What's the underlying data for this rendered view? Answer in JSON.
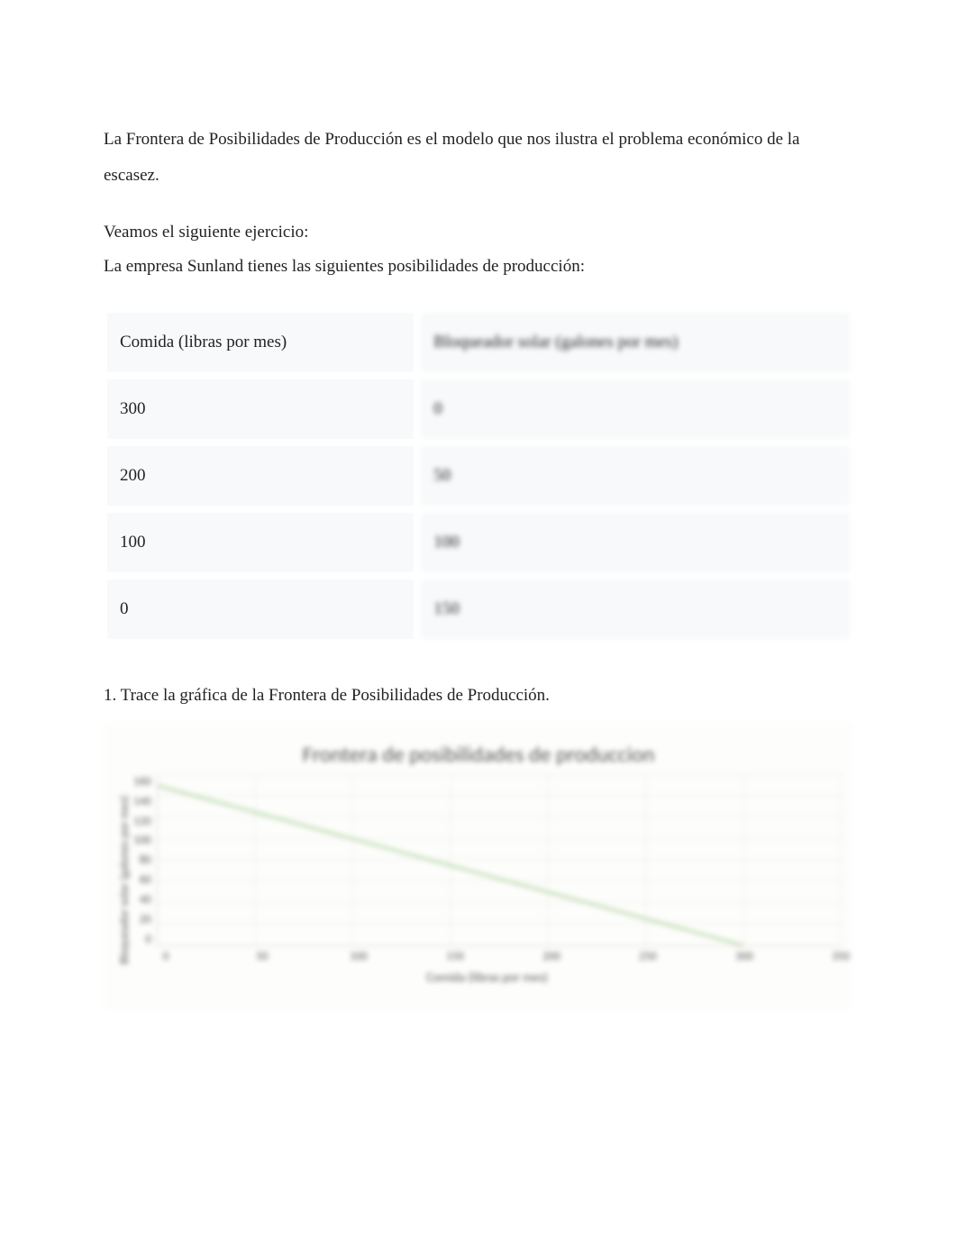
{
  "intro_paragraph": "La Frontera de Posibilidades de Producción es el modelo que nos ilustra el problema económico de la escasez.",
  "exercise_lead": "Veamos el siguiente ejercicio:",
  "exercise_sub": "La empresa Sunland tienes las siguientes posibilidades de producción:",
  "table": {
    "columns": [
      "Comida (libras por mes)",
      "Bloqueador solar (galones por mes)"
    ],
    "rows": [
      [
        "300",
        "0"
      ],
      [
        "200",
        "50"
      ],
      [
        "100",
        "100"
      ],
      [
        "0",
        "150"
      ]
    ],
    "cell_bg": "#f7f9fa",
    "cell_border": "#ffffff",
    "font_size_pt": 14
  },
  "question_1": "1. Trace la gráfica de la Frontera de Posibilidades de Producción.",
  "chart": {
    "type": "line",
    "title": "Frontera de posibilidades de produccion",
    "title_fontsize": 24,
    "title_color": "#595959",
    "xlabel": "Comida (libras por mes)",
    "ylabel": "Bloqueador solar (galones por mes)",
    "label_fontsize": 13,
    "label_color": "#595959",
    "xlim": [
      0,
      350
    ],
    "ylim": [
      0,
      160
    ],
    "x_ticks": [
      0,
      50,
      100,
      150,
      200,
      250,
      300,
      350
    ],
    "y_ticks": [
      0,
      20,
      40,
      60,
      80,
      100,
      120,
      140,
      160
    ],
    "grid_color": "#ececec",
    "axis_color": "#d9d9d9",
    "background_color": "#fdfdfb",
    "series": {
      "x": [
        0,
        100,
        200,
        300
      ],
      "y": [
        150,
        100,
        50,
        0
      ],
      "color": "#b6d7a8",
      "line_width": 8
    }
  }
}
